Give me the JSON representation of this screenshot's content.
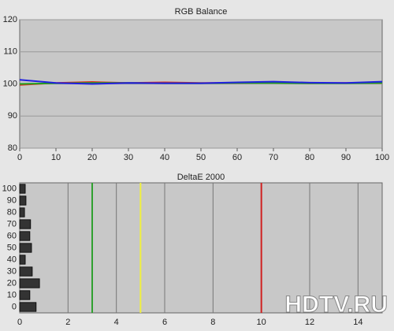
{
  "chart_data": [
    {
      "type": "line",
      "title": "RGB Balance",
      "x": [
        0,
        10,
        20,
        30,
        40,
        50,
        60,
        70,
        80,
        90,
        100
      ],
      "xlim": [
        0,
        100
      ],
      "xticks": [
        0,
        10,
        20,
        30,
        40,
        50,
        60,
        70,
        80,
        90,
        100
      ],
      "ylim": [
        80,
        120
      ],
      "yticks": [
        80,
        90,
        100,
        110,
        120
      ],
      "grid": true,
      "series": [
        {
          "name": "Red",
          "color": "#e03020",
          "values": [
            99.7,
            100.3,
            100.6,
            100.3,
            100.5,
            100.3,
            100.3,
            100.4,
            100.2,
            100.3,
            100.3
          ]
        },
        {
          "name": "Green",
          "color": "#20a020",
          "values": [
            100.0,
            100.2,
            100.3,
            100.3,
            100.2,
            100.2,
            100.3,
            100.3,
            100.2,
            100.2,
            100.3
          ]
        },
        {
          "name": "Blue",
          "color": "#2020e0",
          "values": [
            101.3,
            100.3,
            100.0,
            100.3,
            100.2,
            100.2,
            100.5,
            100.7,
            100.4,
            100.3,
            100.7
          ]
        }
      ]
    },
    {
      "type": "hbar",
      "title": "DeltaE 2000",
      "categories": [
        0,
        10,
        20,
        30,
        40,
        50,
        60,
        70,
        80,
        90,
        100
      ],
      "values": [
        0.68,
        0.42,
        0.82,
        0.52,
        0.23,
        0.49,
        0.42,
        0.45,
        0.2,
        0.26,
        0.23
      ],
      "color": "#333333",
      "xlim": [
        0,
        15
      ],
      "xticks": [
        0,
        2,
        4,
        6,
        8,
        10,
        12,
        14
      ],
      "grid": true,
      "reference_lines": [
        {
          "value": 3,
          "color": "#30a030"
        },
        {
          "value": 5,
          "color": "#f0f040"
        },
        {
          "value": 10,
          "color": "#d02020"
        }
      ],
      "watermark": "HDTV.RU"
    }
  ]
}
